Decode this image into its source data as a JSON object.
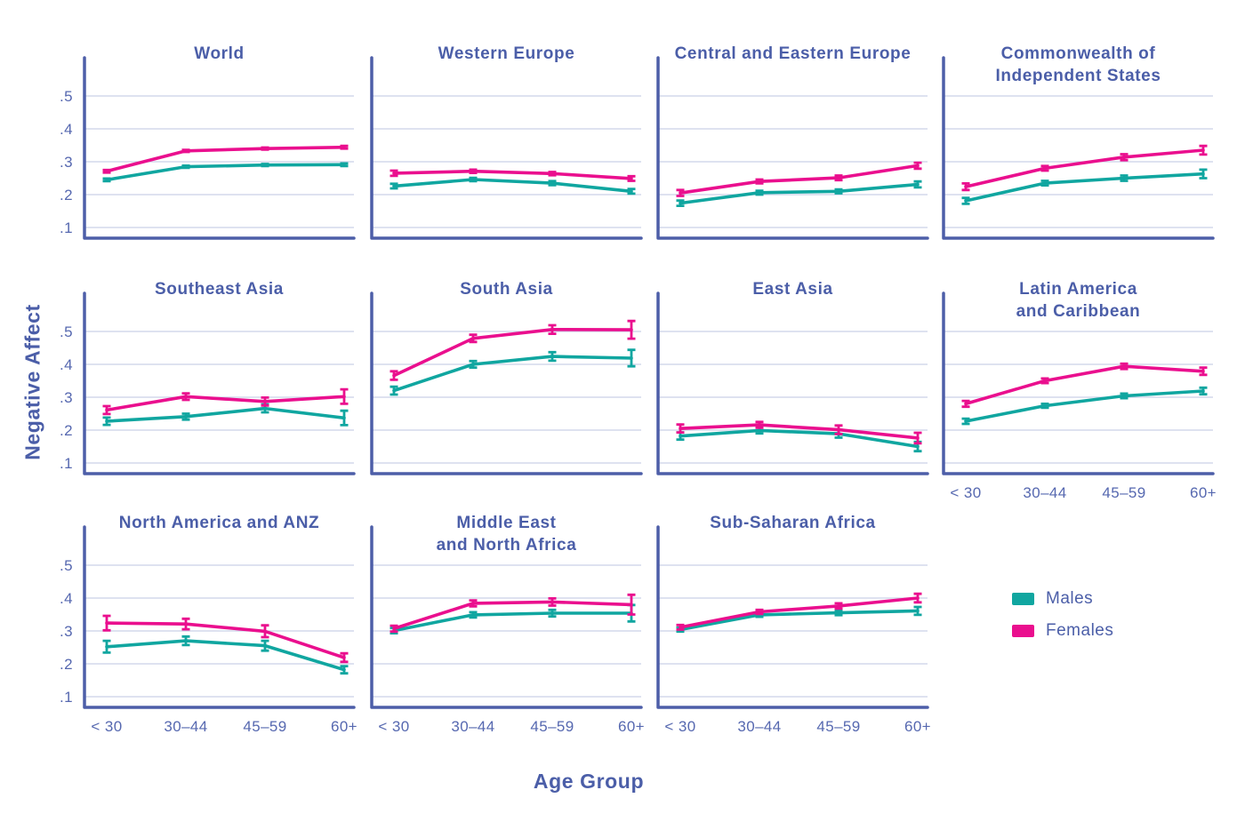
{
  "figure": {
    "colors": {
      "males": "#10A6A0",
      "females": "#EA0F8E",
      "spine": "#4D5EA8",
      "grid": "#CBD1E8",
      "title_text": "#4B5EA8",
      "tick_text": "#5668B0"
    }
  },
  "chart_data": {
    "type": "line",
    "xlabel": "Age Group",
    "ylabel": "Negative Affect",
    "categories": [
      "< 30",
      "30–44",
      "45–59",
      "60+"
    ],
    "ytick_labels": [
      ".5",
      ".4",
      ".3",
      ".2",
      ".1"
    ],
    "ytick_values": [
      0.5,
      0.4,
      0.3,
      0.2,
      0.1
    ],
    "ylim": [
      0.07,
      0.62
    ],
    "grid": true,
    "error_bars": true,
    "legend": {
      "position": "bottom-right",
      "items": [
        {
          "label": "Males",
          "key": "males"
        },
        {
          "label": "Females",
          "key": "females"
        }
      ]
    },
    "panels": [
      {
        "title": "World",
        "title_lines": [
          "World"
        ],
        "series": [
          {
            "key": "males",
            "name": "Males",
            "values": [
              0.245,
              0.285,
              0.29,
              0.291
            ],
            "err": [
              0.004,
              0.003,
              0.003,
              0.004
            ]
          },
          {
            "key": "females",
            "name": "Females",
            "values": [
              0.271,
              0.333,
              0.34,
              0.344
            ],
            "err": [
              0.004,
              0.003,
              0.003,
              0.004
            ]
          }
        ]
      },
      {
        "title": "Western Europe",
        "title_lines": [
          "Western Europe"
        ],
        "series": [
          {
            "key": "males",
            "name": "Males",
            "values": [
              0.226,
              0.246,
              0.235,
              0.21
            ],
            "err": [
              0.007,
              0.005,
              0.006,
              0.007
            ]
          },
          {
            "key": "females",
            "name": "Females",
            "values": [
              0.265,
              0.271,
              0.264,
              0.249
            ],
            "err": [
              0.008,
              0.005,
              0.005,
              0.007
            ]
          }
        ]
      },
      {
        "title": "Central and Eastern Europe",
        "title_lines": [
          "Central and Eastern Europe"
        ],
        "series": [
          {
            "key": "males",
            "name": "Males",
            "values": [
              0.174,
              0.206,
              0.21,
              0.231
            ],
            "err": [
              0.008,
              0.006,
              0.006,
              0.009
            ]
          },
          {
            "key": "females",
            "name": "Females",
            "values": [
              0.205,
              0.24,
              0.251,
              0.288
            ],
            "err": [
              0.009,
              0.006,
              0.007,
              0.009
            ]
          }
        ]
      },
      {
        "title": "Commonwealth of Independent States",
        "title_lines": [
          "Commonwealth of",
          "Independent States"
        ],
        "series": [
          {
            "key": "males",
            "name": "Males",
            "values": [
              0.181,
              0.235,
              0.25,
              0.263
            ],
            "err": [
              0.009,
              0.007,
              0.008,
              0.013
            ]
          },
          {
            "key": "females",
            "name": "Females",
            "values": [
              0.224,
              0.28,
              0.314,
              0.335
            ],
            "err": [
              0.01,
              0.007,
              0.009,
              0.013
            ]
          }
        ]
      },
      {
        "title": "Southeast Asia",
        "title_lines": [
          "Southeast Asia"
        ],
        "series": [
          {
            "key": "males",
            "name": "Males",
            "values": [
              0.227,
              0.241,
              0.266,
              0.237
            ],
            "err": [
              0.011,
              0.009,
              0.012,
              0.022
            ]
          },
          {
            "key": "females",
            "name": "Females",
            "values": [
              0.261,
              0.302,
              0.287,
              0.302
            ],
            "err": [
              0.012,
              0.01,
              0.012,
              0.022
            ]
          }
        ]
      },
      {
        "title": "South Asia",
        "title_lines": [
          "South Asia"
        ],
        "series": [
          {
            "key": "males",
            "name": "Males",
            "values": [
              0.32,
              0.4,
              0.424,
              0.419
            ],
            "err": [
              0.012,
              0.01,
              0.013,
              0.025
            ]
          },
          {
            "key": "females",
            "name": "Females",
            "values": [
              0.366,
              0.479,
              0.506,
              0.505
            ],
            "err": [
              0.013,
              0.011,
              0.013,
              0.027
            ]
          }
        ]
      },
      {
        "title": "East Asia",
        "title_lines": [
          "East Asia"
        ],
        "series": [
          {
            "key": "males",
            "name": "Males",
            "values": [
              0.182,
              0.199,
              0.189,
              0.15
            ],
            "err": [
              0.011,
              0.009,
              0.012,
              0.014
            ]
          },
          {
            "key": "females",
            "name": "Females",
            "values": [
              0.205,
              0.216,
              0.201,
              0.176
            ],
            "err": [
              0.012,
              0.009,
              0.013,
              0.016
            ]
          }
        ]
      },
      {
        "title": "Latin America and Caribbean",
        "title_lines": [
          "Latin America",
          "and Caribbean"
        ],
        "series": [
          {
            "key": "males",
            "name": "Males",
            "values": [
              0.227,
              0.274,
              0.304,
              0.319
            ],
            "err": [
              0.008,
              0.006,
              0.007,
              0.01
            ]
          },
          {
            "key": "females",
            "name": "Females",
            "values": [
              0.28,
              0.35,
              0.394,
              0.379
            ],
            "err": [
              0.009,
              0.007,
              0.008,
              0.011
            ]
          }
        ]
      },
      {
        "title": "North America and ANZ",
        "title_lines": [
          "North America and ANZ"
        ],
        "series": [
          {
            "key": "males",
            "name": "Males",
            "values": [
              0.252,
              0.27,
              0.255,
              0.182
            ],
            "err": [
              0.018,
              0.013,
              0.015,
              0.011
            ]
          },
          {
            "key": "females",
            "name": "Females",
            "values": [
              0.324,
              0.321,
              0.299,
              0.219
            ],
            "err": [
              0.022,
              0.016,
              0.018,
              0.013
            ]
          }
        ]
      },
      {
        "title": "Middle East and North Africa",
        "title_lines": [
          "Middle East",
          "and North Africa"
        ],
        "series": [
          {
            "key": "males",
            "name": "Males",
            "values": [
              0.301,
              0.349,
              0.354,
              0.354
            ],
            "err": [
              0.008,
              0.008,
              0.01,
              0.025
            ]
          },
          {
            "key": "females",
            "name": "Females",
            "values": [
              0.307,
              0.384,
              0.388,
              0.38
            ],
            "err": [
              0.009,
              0.009,
              0.011,
              0.03
            ]
          }
        ]
      },
      {
        "title": "Sub-Saharan Africa",
        "title_lines": [
          "Sub-Saharan Africa"
        ],
        "series": [
          {
            "key": "males",
            "name": "Males",
            "values": [
              0.304,
              0.349,
              0.355,
              0.361
            ],
            "err": [
              0.006,
              0.006,
              0.007,
              0.012
            ]
          },
          {
            "key": "females",
            "name": "Females",
            "values": [
              0.311,
              0.358,
              0.376,
              0.4
            ],
            "err": [
              0.007,
              0.006,
              0.008,
              0.013
            ]
          }
        ]
      }
    ]
  }
}
